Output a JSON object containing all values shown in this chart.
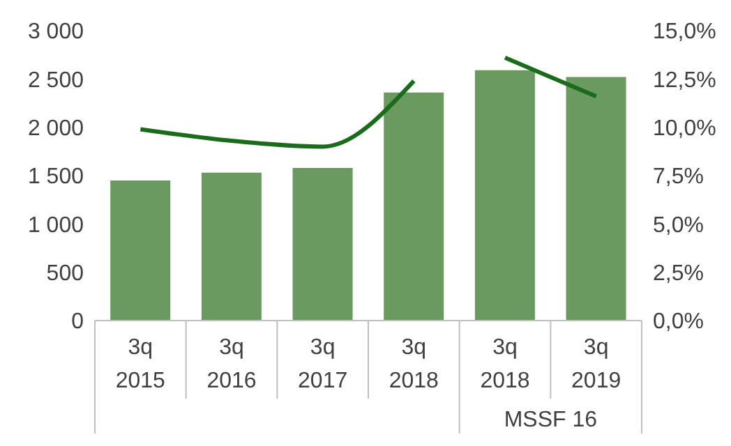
{
  "chart_data": {
    "type": "bar",
    "categories": [
      "3q 2015",
      "3q 2016",
      "3q 2017",
      "3q 2018",
      "3q 2018",
      "3q 2019"
    ],
    "series": [
      {
        "color": "#6a9a5f",
        "values": [
          1450,
          1530,
          1580,
          2360,
          2590,
          2520
        ]
      },
      {
        "type": "line",
        "axis": "y2",
        "color": "#1a6b1a",
        "values": [
          9.9,
          9.3,
          9.0,
          12.4,
          null,
          null
        ]
      },
      {
        "type": "line",
        "axis": "y2",
        "color": "#1a6b1a",
        "values": [
          null,
          null,
          null,
          null,
          13.6,
          11.6
        ]
      }
    ],
    "ylim": [
      0,
      3000
    ],
    "yticks": [
      {
        "value": 0,
        "label": "0"
      },
      {
        "value": 500,
        "label": "500"
      },
      {
        "value": 1000,
        "label": "1 000"
      },
      {
        "value": 1500,
        "label": "1 500"
      },
      {
        "value": 2000,
        "label": "2 000"
      },
      {
        "value": 2500,
        "label": "2 500"
      },
      {
        "value": 3000,
        "label": "3 000"
      }
    ],
    "y2lim": [
      0,
      15
    ],
    "y2ticks": [
      {
        "value": 0,
        "label": "0,0%"
      },
      {
        "value": 2.5,
        "label": "2,5%"
      },
      {
        "value": 5,
        "label": "5,0%"
      },
      {
        "value": 7.5,
        "label": "7,5%"
      },
      {
        "value": 10,
        "label": "10,0%"
      },
      {
        "value": 12.5,
        "label": "12,5%"
      },
      {
        "value": 15,
        "label": "15,0%"
      }
    ],
    "annotations": [
      "MSSF 16"
    ],
    "marker": "none",
    "legend": false,
    "grid": false
  }
}
